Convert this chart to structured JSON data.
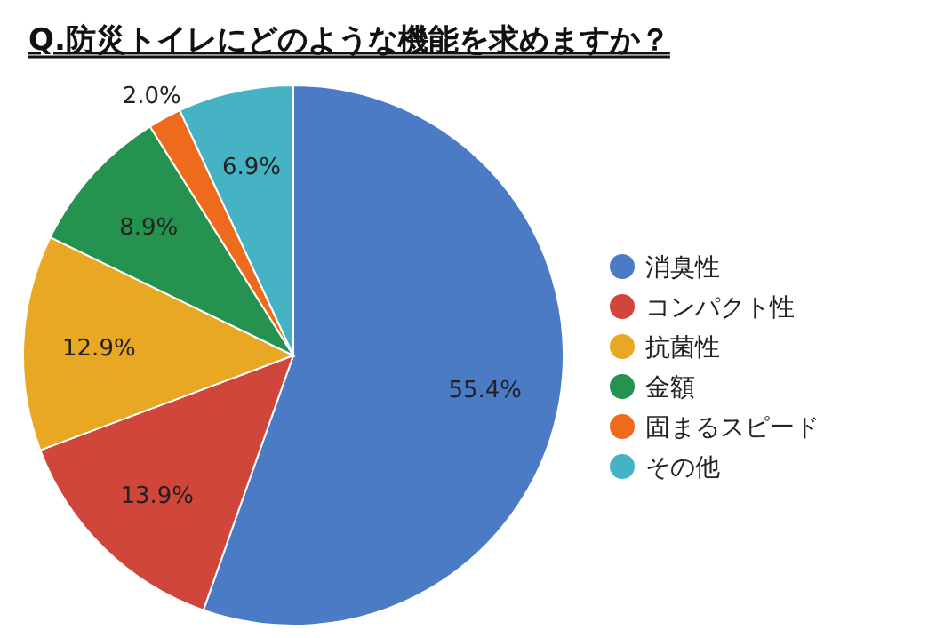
{
  "chart_data": {
    "type": "pie",
    "title": "Q.防災トイレにどのような機能を求めますか？",
    "categories": [
      "消臭性",
      "コンパクト性",
      "抗菌性",
      "金額",
      "固まるスピード",
      "その他"
    ],
    "values": [
      55.4,
      13.9,
      12.9,
      8.9,
      2.0,
      6.9
    ],
    "colors": [
      "#4a7bc4",
      "#d0463b",
      "#e9a823",
      "#26924f",
      "#ee6b1e",
      "#45b3c3"
    ],
    "value_labels": [
      "55.4%",
      "13.9%",
      "12.9%",
      "8.9%",
      "2.0%",
      "6.9%"
    ],
    "legend": "right"
  }
}
